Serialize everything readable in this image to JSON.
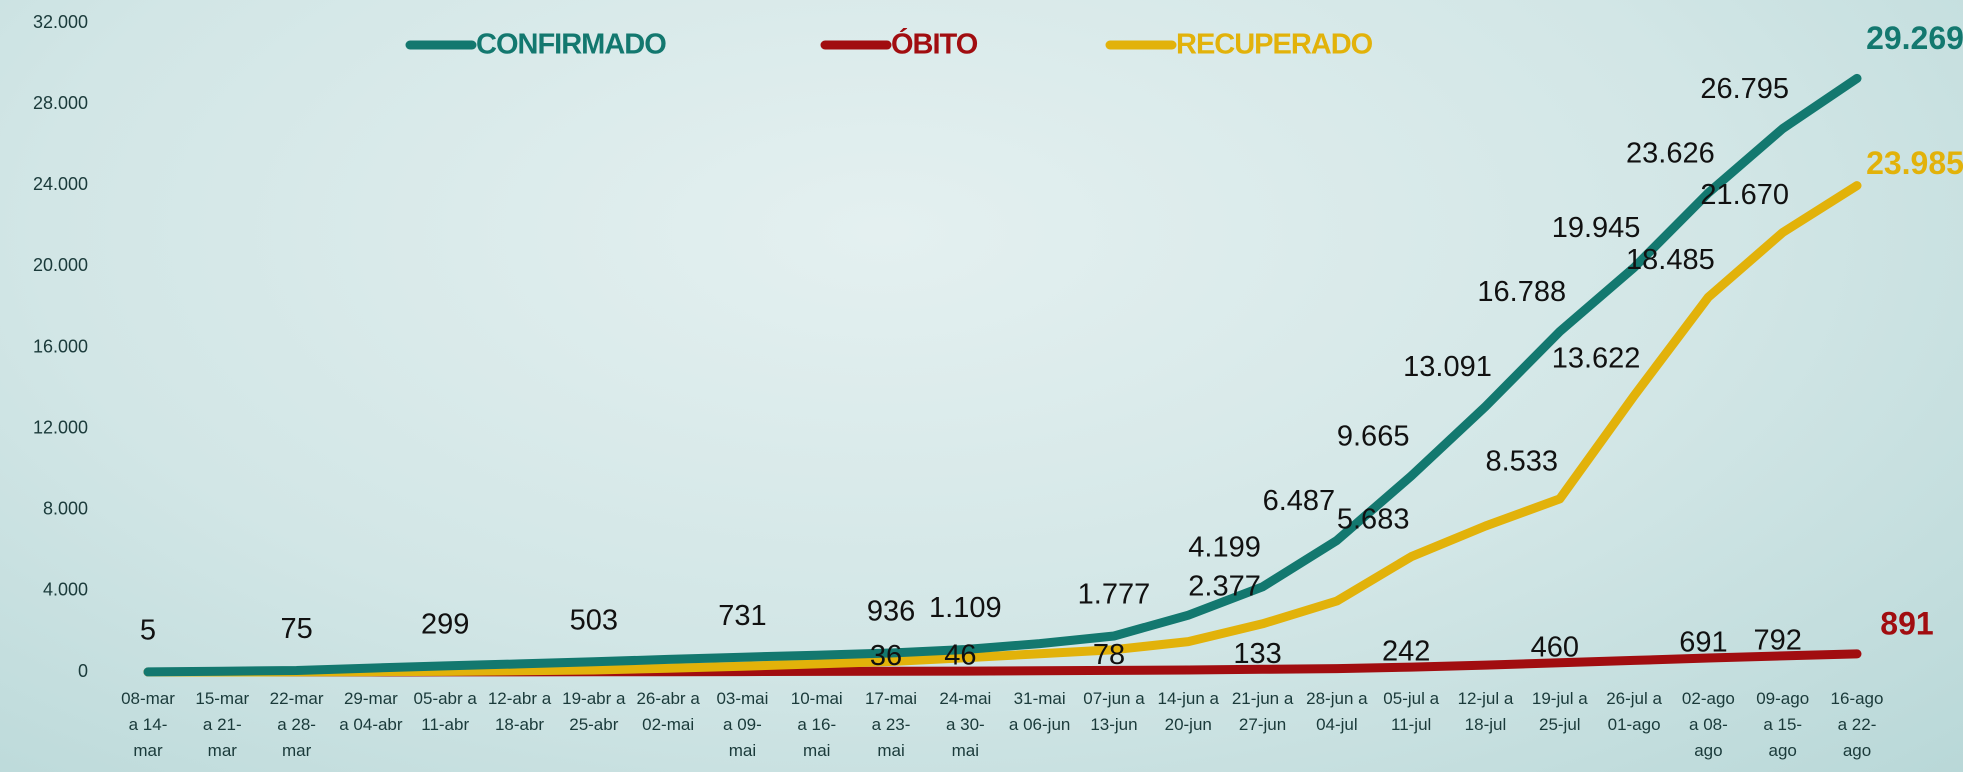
{
  "chart_data": {
    "type": "line",
    "categories": [
      "08-mar a 14-mar",
      "15-mar a 21-mar",
      "22-mar a 28-mar",
      "29-mar a 04-abr",
      "05-abr a 11-abr",
      "12-abr a 18-abr",
      "19-abr a 25-abr",
      "26-abr a 02-mai",
      "03-mai a 09-mai",
      "10-mai a 16-mai",
      "17-mai a 23-mai",
      "24-mai a 30-mai",
      "31-mai a 06-jun",
      "07-jun a 13-jun",
      "14-jun a 20-jun",
      "21-jun a 27-jun",
      "28-jun a 04-jul",
      "05-jul a 11-jul",
      "12-jul a 18-jul",
      "19-jul a 25-jul",
      "26-jul a 01-ago",
      "02-ago a 08-ago",
      "09-ago a 15-ago",
      "16-ago a 22-ago"
    ],
    "series": [
      {
        "name": "CONFIRMADO",
        "color": "#13786f",
        "values": [
          5,
          40,
          75,
          190,
          299,
          400,
          503,
          620,
          731,
          830,
          936,
          1109,
          1400,
          1777,
          2800,
          4199,
          6487,
          9665,
          13091,
          16788,
          19945,
          23626,
          26795,
          29269
        ],
        "value_labels": [
          "5",
          null,
          "75",
          null,
          "299",
          null,
          "503",
          null,
          "731",
          null,
          "936",
          "1.109",
          null,
          "1.777",
          null,
          "4.199",
          "6.487",
          "9.665",
          "13.091",
          "16.788",
          "19.945",
          "23.626",
          "26.795",
          "29.269"
        ]
      },
      {
        "name": "ÓBITO",
        "color": "#a10d10",
        "values": [
          0,
          0,
          1,
          2,
          4,
          7,
          10,
          14,
          20,
          28,
          36,
          46,
          60,
          78,
          100,
          133,
          170,
          242,
          340,
          460,
          570,
          691,
          792,
          891
        ],
        "value_labels": [
          null,
          null,
          null,
          null,
          null,
          null,
          null,
          null,
          null,
          null,
          "36",
          "46",
          null,
          "78",
          null,
          "133",
          null,
          "242",
          null,
          "460",
          null,
          "691",
          "792",
          "891"
        ]
      },
      {
        "name": "RECUPERADO",
        "color": "#e2b20a",
        "values": [
          0,
          0,
          5,
          15,
          30,
          60,
          100,
          180,
          280,
          400,
          520,
          700,
          900,
          1100,
          1500,
          2377,
          3500,
          5683,
          7200,
          8533,
          13622,
          18485,
          21670,
          23985
        ],
        "value_labels": [
          null,
          null,
          null,
          null,
          null,
          null,
          null,
          null,
          null,
          null,
          null,
          null,
          null,
          null,
          null,
          "2.377",
          null,
          "5.683",
          null,
          "8.533",
          "13.622",
          "18.485",
          "21.670",
          "23.985"
        ]
      }
    ],
    "ylim": [
      0,
      32000
    ],
    "yticks": [
      0,
      {
        "value": 4000,
        "label": "4.000"
      },
      {
        "value": 8000,
        "label": "8.000"
      },
      {
        "value": 12000,
        "label": "12.000"
      },
      {
        "value": 16000,
        "label": "16.000"
      },
      {
        "value": 20000,
        "label": "20.000"
      },
      {
        "value": 24000,
        "label": "24.000"
      },
      {
        "value": 28000,
        "label": "28.000"
      },
      {
        "value": 32000,
        "label": "32.000"
      }
    ],
    "grid": false,
    "legend": "top"
  }
}
